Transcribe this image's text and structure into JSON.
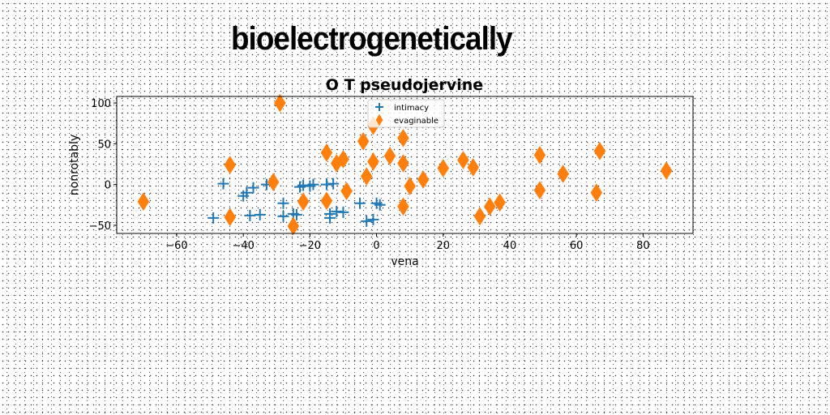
{
  "banner": "bioelectrogenetically",
  "chart_data": {
    "type": "scatter",
    "title": "O T pseudojervine",
    "xlabel": "vena",
    "ylabel": "nonrotably",
    "xlim": [
      -78,
      95
    ],
    "ylim": [
      -60,
      108
    ],
    "xticks": [
      -60,
      -40,
      -20,
      0,
      20,
      40,
      60,
      80
    ],
    "yticks": [
      -50,
      0,
      50,
      100
    ],
    "grid": false,
    "legend_position": "top-center",
    "series": [
      {
        "name": "intimacy",
        "marker": "plus",
        "color": "#1f77b4",
        "points": [
          [
            -49,
            -41
          ],
          [
            -46,
            1
          ],
          [
            -40,
            -14
          ],
          [
            -39,
            -10
          ],
          [
            -38,
            -38
          ],
          [
            -37,
            -4
          ],
          [
            -35,
            -37
          ],
          [
            -33,
            0
          ],
          [
            -28,
            -39
          ],
          [
            -28,
            -23
          ],
          [
            -25,
            -36
          ],
          [
            -24,
            -37
          ],
          [
            -23,
            -3
          ],
          [
            -22,
            -1
          ],
          [
            -20,
            -2
          ],
          [
            -19,
            0
          ],
          [
            -15,
            0
          ],
          [
            -14,
            -41
          ],
          [
            -14,
            -36
          ],
          [
            -13,
            1
          ],
          [
            -12,
            -33
          ],
          [
            -10,
            -34
          ],
          [
            -5,
            -23
          ],
          [
            -3,
            -45
          ],
          [
            -1,
            -43
          ],
          [
            0,
            -23
          ],
          [
            1,
            -25
          ]
        ]
      },
      {
        "name": "evaginable",
        "marker": "thin_diamond",
        "color": "#ff7f0e",
        "points": [
          [
            -70,
            -21
          ],
          [
            -44,
            24
          ],
          [
            -44,
            -40
          ],
          [
            -31,
            3
          ],
          [
            -29,
            100
          ],
          [
            -25,
            -51
          ],
          [
            -22,
            -21
          ],
          [
            -15,
            -20
          ],
          [
            -15,
            39
          ],
          [
            -12,
            26
          ],
          [
            -10,
            31
          ],
          [
            -9,
            -8
          ],
          [
            -4,
            53
          ],
          [
            -3,
            10
          ],
          [
            -1,
            28
          ],
          [
            -1,
            72
          ],
          [
            4,
            35
          ],
          [
            8,
            57
          ],
          [
            8,
            26
          ],
          [
            8,
            -27
          ],
          [
            10,
            -2
          ],
          [
            14,
            6
          ],
          [
            20,
            20
          ],
          [
            26,
            30
          ],
          [
            29,
            21
          ],
          [
            31,
            -39
          ],
          [
            34,
            -27
          ],
          [
            37,
            -22
          ],
          [
            49,
            36
          ],
          [
            49,
            -7
          ],
          [
            56,
            13
          ],
          [
            66,
            -10
          ],
          [
            67,
            41
          ],
          [
            87,
            17
          ]
        ]
      }
    ]
  }
}
